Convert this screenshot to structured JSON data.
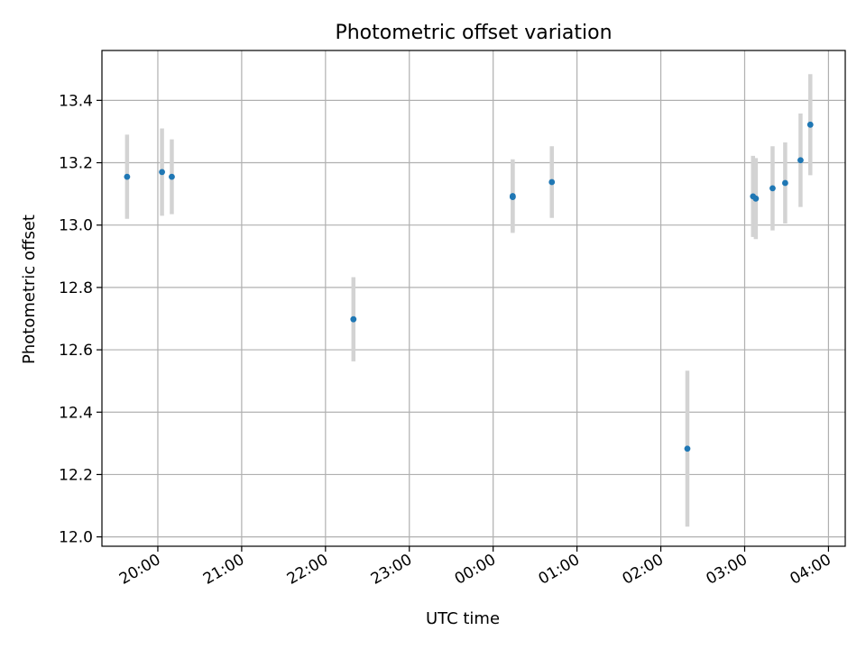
{
  "chart_data": {
    "type": "scatter",
    "title": "Photometric offset variation",
    "xlabel": "UTC time",
    "ylabel": "Photometric offset",
    "x_tick_labels": [
      "20:00",
      "21:00",
      "22:00",
      "23:00",
      "00:00",
      "01:00",
      "02:00",
      "03:00",
      "04:00"
    ],
    "y_tick_labels": [
      "12.0",
      "12.2",
      "12.4",
      "12.6",
      "12.8",
      "13.0",
      "13.2",
      "13.4"
    ],
    "y_ticks": [
      12.0,
      12.2,
      12.4,
      12.6,
      12.8,
      13.0,
      13.2,
      13.4
    ],
    "ylim": [
      11.97,
      13.56
    ],
    "xlim": [
      "19:20",
      "04:12"
    ],
    "x_ticks": [
      "20:00",
      "21:00",
      "22:00",
      "23:00",
      "00:00",
      "01:00",
      "02:00",
      "03:00",
      "04:00"
    ],
    "grid": true,
    "series": [
      {
        "points": [
          {
            "x": "19:38",
            "y": 13.155,
            "yerr": 0.135
          },
          {
            "x": "20:03",
            "y": 13.17,
            "yerr": 0.14
          },
          {
            "x": "20:10",
            "y": 13.155,
            "yerr": 0.12
          },
          {
            "x": "22:20",
            "y": 12.698,
            "yerr": 0.135
          },
          {
            "x": "00:14",
            "y": 13.093,
            "yerr": 0.118
          },
          {
            "x": "00:14",
            "y": 13.09,
            "yerr": 0.11
          },
          {
            "x": "00:42",
            "y": 13.138,
            "yerr": 0.115
          },
          {
            "x": "02:19",
            "y": 12.283,
            "yerr": 0.25
          },
          {
            "x": "03:06",
            "y": 13.092,
            "yerr": 0.13
          },
          {
            "x": "03:08",
            "y": 13.085,
            "yerr": 0.13
          },
          {
            "x": "03:20",
            "y": 13.118,
            "yerr": 0.135
          },
          {
            "x": "03:29",
            "y": 13.135,
            "yerr": 0.13
          },
          {
            "x": "03:40",
            "y": 13.208,
            "yerr": 0.15
          },
          {
            "x": "03:47",
            "y": 13.322,
            "yerr": 0.162
          }
        ]
      }
    ],
    "colors": {
      "marker": "#1f77b4",
      "errorbar": "#d3d3d3",
      "grid": "#b0b0b0",
      "axis": "#000000"
    }
  }
}
